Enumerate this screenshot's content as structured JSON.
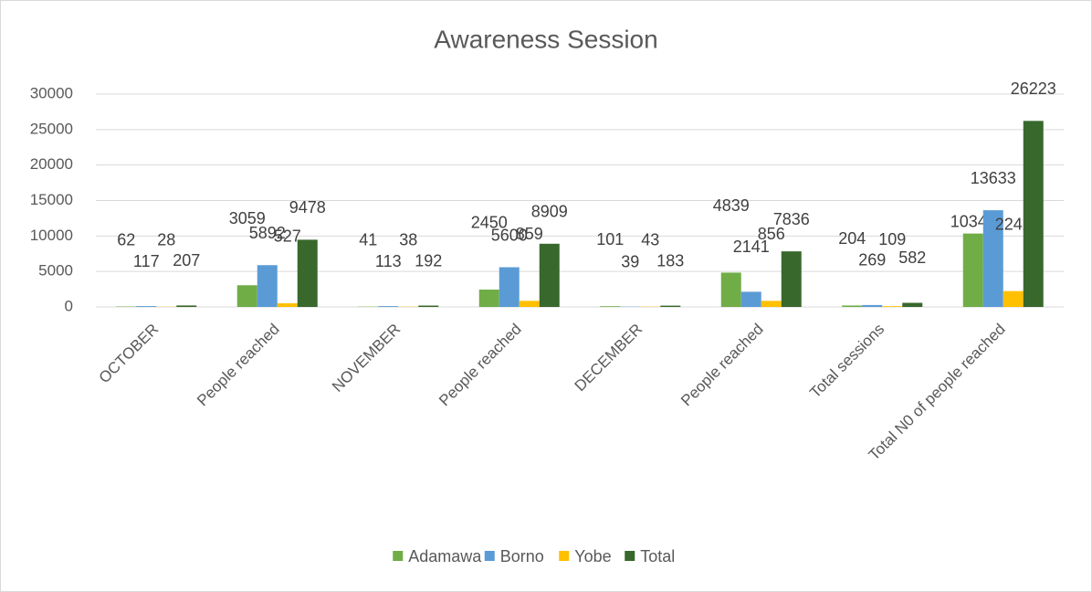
{
  "chart_data": {
    "type": "bar",
    "title": "Awareness Session",
    "categories": [
      "OCTOBER",
      "People reached",
      "NOVEMBER",
      "People reached",
      "DECEMBER",
      "People reached",
      "Total sessions",
      "Total N0 of people reached"
    ],
    "series": [
      {
        "name": "Adamawa",
        "color": "#70ad47",
        "values": [
          62,
          3059,
          41,
          2450,
          101,
          4839,
          204,
          10348
        ]
      },
      {
        "name": "Borno",
        "color": "#5b9bd5",
        "values": [
          117,
          5892,
          113,
          5600,
          39,
          2141,
          269,
          13633
        ]
      },
      {
        "name": "Yobe",
        "color": "#ffc000",
        "values": [
          28,
          527,
          38,
          859,
          43,
          856,
          109,
          2242
        ]
      },
      {
        "name": "Total",
        "color": "#38682c",
        "values": [
          207,
          9478,
          192,
          8909,
          183,
          7836,
          582,
          26223
        ]
      }
    ],
    "ylim": [
      0,
      30000
    ],
    "yticks": [
      0,
      5000,
      10000,
      15000,
      20000,
      25000,
      30000
    ],
    "grid": true,
    "legend": "bottom"
  }
}
